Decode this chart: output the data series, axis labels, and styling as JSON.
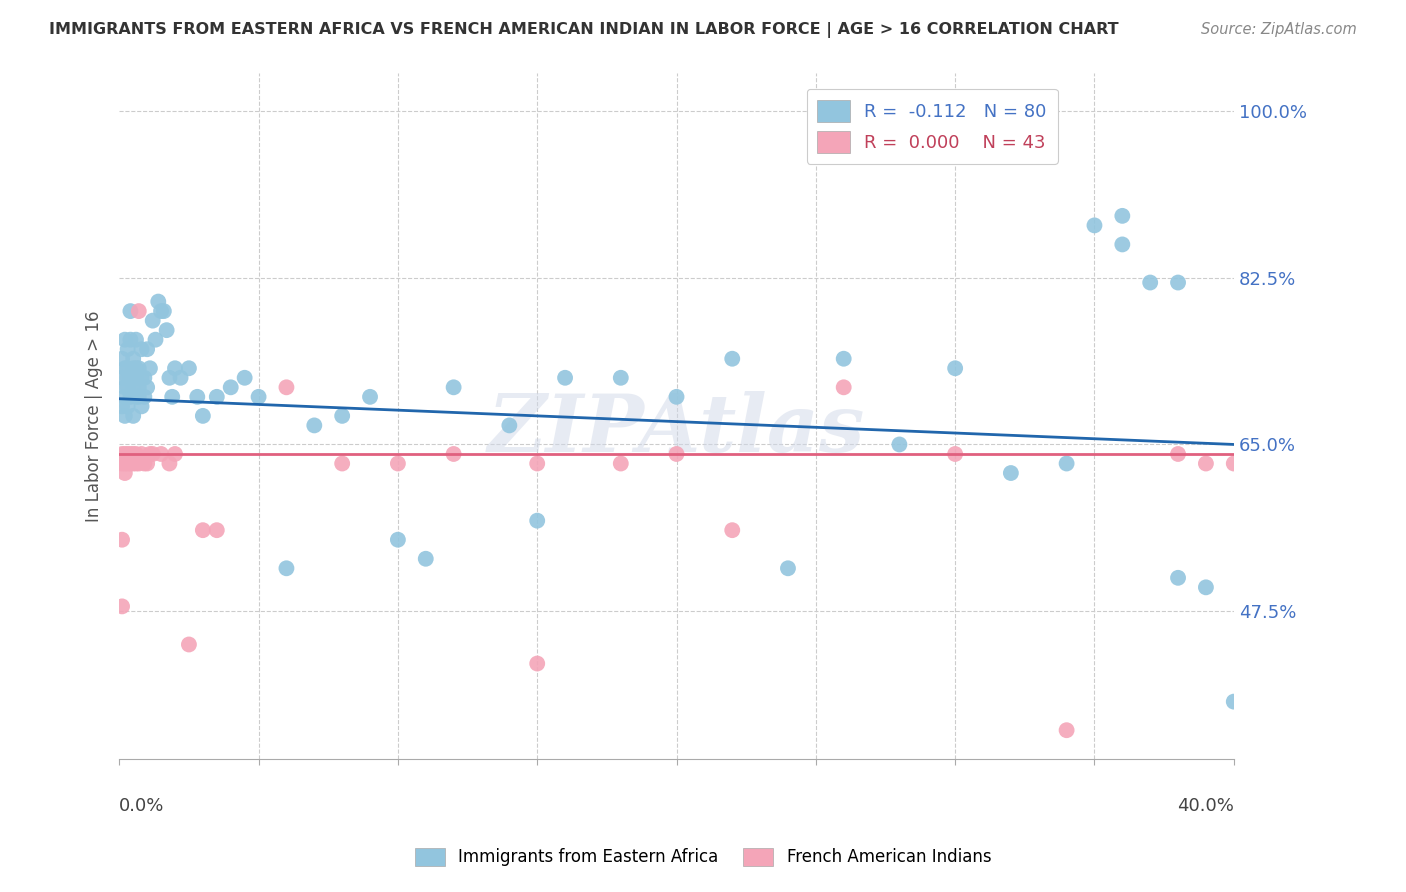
{
  "title": "IMMIGRANTS FROM EASTERN AFRICA VS FRENCH AMERICAN INDIAN IN LABOR FORCE | AGE > 16 CORRELATION CHART",
  "source": "Source: ZipAtlas.com",
  "ylabel": "In Labor Force | Age > 16",
  "ytick_labels": [
    "100.0%",
    "82.5%",
    "65.0%",
    "47.5%"
  ],
  "ytick_values": [
    1.0,
    0.825,
    0.65,
    0.475
  ],
  "ylim": [
    0.32,
    1.04
  ],
  "xlim": [
    0.0,
    0.4
  ],
  "blue_color": "#92c5de",
  "pink_color": "#f4a5b8",
  "blue_line_color": "#2166ac",
  "pink_line_color": "#e0607e",
  "watermark": "ZIPAtlas",
  "title_color": "#333333",
  "source_color": "#888888",
  "axis_label_color": "#555555",
  "grid_color": "#cccccc",
  "right_tick_color": "#4472c4",
  "blue_scatter_x": [
    0.001,
    0.001,
    0.001,
    0.002,
    0.002,
    0.002,
    0.002,
    0.002,
    0.003,
    0.003,
    0.003,
    0.003,
    0.003,
    0.004,
    0.004,
    0.004,
    0.004,
    0.005,
    0.005,
    0.005,
    0.005,
    0.006,
    0.006,
    0.006,
    0.006,
    0.007,
    0.007,
    0.007,
    0.008,
    0.008,
    0.008,
    0.009,
    0.009,
    0.01,
    0.01,
    0.011,
    0.012,
    0.013,
    0.014,
    0.015,
    0.016,
    0.017,
    0.018,
    0.019,
    0.02,
    0.022,
    0.025,
    0.028,
    0.03,
    0.035,
    0.04,
    0.045,
    0.05,
    0.06,
    0.07,
    0.08,
    0.09,
    0.1,
    0.11,
    0.12,
    0.14,
    0.15,
    0.16,
    0.18,
    0.2,
    0.22,
    0.24,
    0.26,
    0.28,
    0.3,
    0.32,
    0.34,
    0.35,
    0.36,
    0.37,
    0.38,
    0.39,
    0.4,
    0.36,
    0.38
  ],
  "blue_scatter_y": [
    0.72,
    0.69,
    0.74,
    0.7,
    0.68,
    0.73,
    0.76,
    0.71,
    0.69,
    0.71,
    0.73,
    0.75,
    0.72,
    0.7,
    0.72,
    0.76,
    0.79,
    0.71,
    0.73,
    0.68,
    0.74,
    0.72,
    0.7,
    0.73,
    0.76,
    0.71,
    0.73,
    0.7,
    0.75,
    0.72,
    0.69,
    0.72,
    0.7,
    0.75,
    0.71,
    0.73,
    0.78,
    0.76,
    0.8,
    0.79,
    0.79,
    0.77,
    0.72,
    0.7,
    0.73,
    0.72,
    0.73,
    0.7,
    0.68,
    0.7,
    0.71,
    0.72,
    0.7,
    0.52,
    0.67,
    0.68,
    0.7,
    0.55,
    0.53,
    0.71,
    0.67,
    0.57,
    0.72,
    0.72,
    0.7,
    0.74,
    0.52,
    0.74,
    0.65,
    0.73,
    0.62,
    0.63,
    0.88,
    0.89,
    0.82,
    0.51,
    0.5,
    0.38,
    0.86,
    0.82
  ],
  "pink_scatter_x": [
    0.001,
    0.001,
    0.001,
    0.001,
    0.002,
    0.002,
    0.002,
    0.003,
    0.003,
    0.004,
    0.004,
    0.005,
    0.005,
    0.006,
    0.006,
    0.007,
    0.007,
    0.008,
    0.009,
    0.01,
    0.011,
    0.012,
    0.015,
    0.018,
    0.02,
    0.025,
    0.03,
    0.035,
    0.06,
    0.08,
    0.1,
    0.12,
    0.15,
    0.18,
    0.2,
    0.22,
    0.26,
    0.3,
    0.34,
    0.38,
    0.39,
    0.4,
    0.15
  ],
  "pink_scatter_y": [
    0.64,
    0.63,
    0.48,
    0.55,
    0.64,
    0.63,
    0.62,
    0.63,
    0.64,
    0.64,
    0.63,
    0.64,
    0.63,
    0.63,
    0.64,
    0.79,
    0.63,
    0.64,
    0.63,
    0.63,
    0.64,
    0.64,
    0.64,
    0.63,
    0.64,
    0.44,
    0.56,
    0.56,
    0.71,
    0.63,
    0.63,
    0.64,
    0.63,
    0.63,
    0.64,
    0.56,
    0.71,
    0.64,
    0.35,
    0.64,
    0.63,
    0.63,
    0.42
  ],
  "blue_line_x0": 0.0,
  "blue_line_y0": 0.698,
  "blue_line_x1": 0.4,
  "blue_line_y1": 0.65,
  "pink_line_y": 0.64
}
